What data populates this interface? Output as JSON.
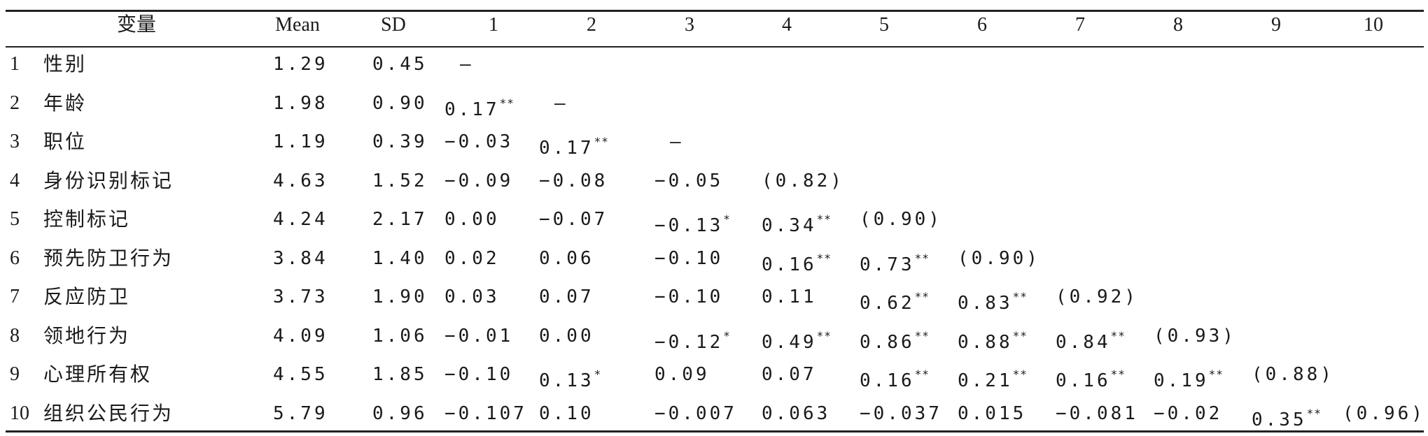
{
  "table": {
    "headers": [
      "变量",
      "Mean",
      "SD",
      "1",
      "2",
      "3",
      "4",
      "5",
      "6",
      "7",
      "8",
      "9",
      "10"
    ],
    "rows": [
      {
        "index": "1",
        "variable": "性别",
        "mean": "1.29",
        "sd": "0.45",
        "cells": [
          {
            "v": "—",
            "s": ""
          },
          null,
          null,
          null,
          null,
          null,
          null,
          null,
          null,
          null
        ]
      },
      {
        "index": "2",
        "variable": "年龄",
        "mean": "1.98",
        "sd": "0.90",
        "cells": [
          {
            "v": "0.17",
            "s": "**"
          },
          {
            "v": "—",
            "s": ""
          },
          null,
          null,
          null,
          null,
          null,
          null,
          null,
          null
        ]
      },
      {
        "index": "3",
        "variable": "职位",
        "mean": "1.19",
        "sd": "0.39",
        "cells": [
          {
            "v": "−0.03",
            "s": ""
          },
          {
            "v": "0.17",
            "s": "**"
          },
          {
            "v": "—",
            "s": ""
          },
          null,
          null,
          null,
          null,
          null,
          null,
          null
        ]
      },
      {
        "index": "4",
        "variable": "身份识别标记",
        "mean": "4.63",
        "sd": "1.52",
        "cells": [
          {
            "v": "−0.09",
            "s": ""
          },
          {
            "v": "−0.08",
            "s": ""
          },
          {
            "v": "−0.05",
            "s": ""
          },
          {
            "v": "(0.82)",
            "s": ""
          },
          null,
          null,
          null,
          null,
          null,
          null
        ]
      },
      {
        "index": "5",
        "variable": "控制标记",
        "mean": "4.24",
        "sd": "2.17",
        "cells": [
          {
            "v": "0.00",
            "s": ""
          },
          {
            "v": "−0.07",
            "s": ""
          },
          {
            "v": "−0.13",
            "s": "*"
          },
          {
            "v": "0.34",
            "s": "**"
          },
          {
            "v": "(0.90)",
            "s": ""
          },
          null,
          null,
          null,
          null,
          null
        ]
      },
      {
        "index": "6",
        "variable": "预先防卫行为",
        "mean": "3.84",
        "sd": "1.40",
        "cells": [
          {
            "v": "0.02",
            "s": ""
          },
          {
            "v": "0.06",
            "s": ""
          },
          {
            "v": "−0.10",
            "s": ""
          },
          {
            "v": "0.16",
            "s": "**"
          },
          {
            "v": "0.73",
            "s": "**"
          },
          {
            "v": "(0.90)",
            "s": ""
          },
          null,
          null,
          null,
          null
        ]
      },
      {
        "index": "7",
        "variable": "反应防卫",
        "mean": "3.73",
        "sd": "1.90",
        "cells": [
          {
            "v": "0.03",
            "s": ""
          },
          {
            "v": "0.07",
            "s": ""
          },
          {
            "v": "−0.10",
            "s": ""
          },
          {
            "v": "0.11",
            "s": ""
          },
          {
            "v": "0.62",
            "s": "**"
          },
          {
            "v": "0.83",
            "s": "**"
          },
          {
            "v": "(0.92)",
            "s": ""
          },
          null,
          null,
          null
        ]
      },
      {
        "index": "8",
        "variable": "领地行为",
        "mean": "4.09",
        "sd": "1.06",
        "cells": [
          {
            "v": "−0.01",
            "s": ""
          },
          {
            "v": "0.00",
            "s": ""
          },
          {
            "v": "−0.12",
            "s": "*"
          },
          {
            "v": "0.49",
            "s": "**"
          },
          {
            "v": "0.86",
            "s": "**"
          },
          {
            "v": "0.88",
            "s": "**"
          },
          {
            "v": "0.84",
            "s": "**"
          },
          {
            "v": "(0.93)",
            "s": ""
          },
          null,
          null
        ]
      },
      {
        "index": "9",
        "variable": "心理所有权",
        "mean": "4.55",
        "sd": "1.85",
        "cells": [
          {
            "v": "−0.10",
            "s": ""
          },
          {
            "v": "0.13",
            "s": "*"
          },
          {
            "v": "0.09",
            "s": ""
          },
          {
            "v": "0.07",
            "s": ""
          },
          {
            "v": "0.16",
            "s": "**"
          },
          {
            "v": "0.21",
            "s": "**"
          },
          {
            "v": "0.16",
            "s": "**"
          },
          {
            "v": "0.19",
            "s": "**"
          },
          {
            "v": "(0.88)",
            "s": ""
          },
          null
        ]
      },
      {
        "index": "10",
        "variable": "组织公民行为",
        "mean": "5.79",
        "sd": "0.96",
        "cells": [
          {
            "v": "−0.107",
            "s": ""
          },
          {
            "v": "0.10",
            "s": ""
          },
          {
            "v": "−0.007",
            "s": ""
          },
          {
            "v": "0.063",
            "s": ""
          },
          {
            "v": "−0.037",
            "s": ""
          },
          {
            "v": "0.015",
            "s": ""
          },
          {
            "v": "−0.081",
            "s": ""
          },
          {
            "v": "−0.02",
            "s": ""
          },
          {
            "v": "0.35",
            "s": "**"
          },
          {
            "v": "(0.96)",
            "s": ""
          }
        ]
      }
    ]
  }
}
